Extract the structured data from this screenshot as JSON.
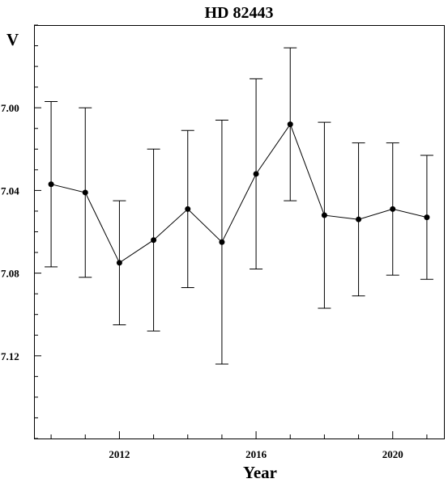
{
  "chart_data": {
    "type": "line",
    "title": "HD 82443",
    "xlabel": "Year",
    "ylabel": "V",
    "y_inverted": true,
    "xlim": [
      2009.5,
      2021.5
    ],
    "ylim": [
      6.96,
      7.16
    ],
    "x_ticks": [
      2012,
      2016,
      2020
    ],
    "x_tick_labels": [
      "2012",
      "2016",
      "2020"
    ],
    "y_ticks": [
      7.0,
      7.04,
      7.08,
      7.12
    ],
    "y_tick_labels": [
      "7.00",
      "7.04",
      "7.08",
      "7.12"
    ],
    "series": [
      {
        "x": [
          2010,
          2011,
          2012,
          2013,
          2014,
          2015,
          2016,
          2017,
          2018,
          2019,
          2020,
          2021
        ],
        "y": [
          7.037,
          7.041,
          7.075,
          7.064,
          7.049,
          7.065,
          7.032,
          7.008,
          7.052,
          7.054,
          7.049,
          7.053
        ],
        "err": [
          0.04,
          0.041,
          0.03,
          0.044,
          0.038,
          0.059,
          0.046,
          0.037,
          0.045,
          0.037,
          0.032,
          0.03
        ]
      }
    ],
    "grid": false,
    "legend": "none"
  }
}
